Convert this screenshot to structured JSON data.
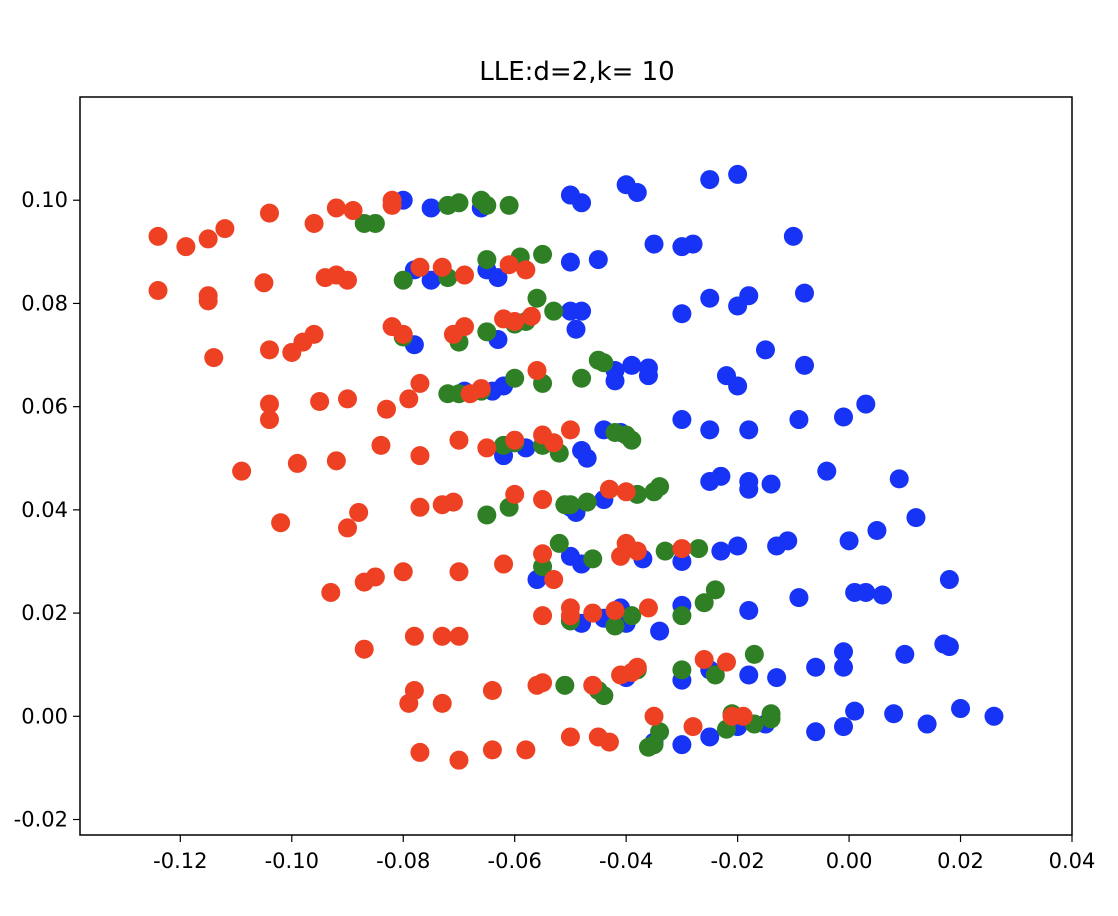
{
  "chart_data": {
    "type": "scatter",
    "title": "LLE:d=2,k= 10",
    "xlabel": "",
    "ylabel": "",
    "xlim": [
      -0.138,
      0.04
    ],
    "ylim": [
      -0.023,
      0.12
    ],
    "grid": false,
    "legend": "none",
    "x_ticks": [
      -0.12,
      -0.1,
      -0.08,
      -0.06,
      -0.04,
      -0.02,
      0.0,
      0.02,
      0.04
    ],
    "x_tick_labels": [
      "-0.12",
      "-0.10",
      "-0.08",
      "-0.06",
      "-0.04",
      "-0.02",
      "0.00",
      "0.02",
      "0.04"
    ],
    "y_ticks": [
      -0.02,
      0.0,
      0.02,
      0.04,
      0.06,
      0.08,
      0.1
    ],
    "y_tick_labels": [
      "-0.02",
      "0.00",
      "0.02",
      "0.04",
      "0.06",
      "0.08",
      "0.10"
    ],
    "series": [
      {
        "color": "#1733f5",
        "points": [
          [
            -0.02,
            0.105
          ],
          [
            -0.025,
            0.104
          ],
          [
            -0.04,
            0.103
          ],
          [
            -0.038,
            0.1015
          ],
          [
            -0.05,
            0.101
          ],
          [
            -0.048,
            0.0995
          ],
          [
            -0.08,
            0.1
          ],
          [
            -0.075,
            0.0985
          ],
          [
            -0.066,
            0.0985
          ],
          [
            -0.01,
            0.093
          ],
          [
            -0.035,
            0.0915
          ],
          [
            -0.028,
            0.0915
          ],
          [
            -0.03,
            0.091
          ],
          [
            -0.05,
            0.088
          ],
          [
            -0.045,
            0.0885
          ],
          [
            -0.078,
            0.0865
          ],
          [
            -0.075,
            0.0845
          ],
          [
            -0.065,
            0.0865
          ],
          [
            -0.063,
            0.085
          ],
          [
            -0.025,
            0.081
          ],
          [
            -0.018,
            0.0815
          ],
          [
            -0.008,
            0.082
          ],
          [
            -0.02,
            0.0795
          ],
          [
            -0.03,
            0.078
          ],
          [
            -0.05,
            0.0785
          ],
          [
            -0.048,
            0.0785
          ],
          [
            -0.049,
            0.075
          ],
          [
            -0.078,
            0.072
          ],
          [
            -0.063,
            0.073
          ],
          [
            -0.015,
            0.071
          ],
          [
            -0.039,
            0.068
          ],
          [
            -0.036,
            0.0675
          ],
          [
            -0.008,
            0.068
          ],
          [
            -0.042,
            0.067
          ],
          [
            -0.036,
            0.066
          ],
          [
            -0.042,
            0.065
          ],
          [
            -0.022,
            0.066
          ],
          [
            -0.02,
            0.064
          ],
          [
            -0.062,
            0.064
          ],
          [
            -0.064,
            0.063
          ],
          [
            -0.069,
            0.063
          ],
          [
            0.003,
            0.0605
          ],
          [
            -0.009,
            0.0575
          ],
          [
            -0.001,
            0.058
          ],
          [
            -0.03,
            0.0575
          ],
          [
            -0.025,
            0.0555
          ],
          [
            -0.018,
            0.0555
          ],
          [
            -0.044,
            0.0555
          ],
          [
            -0.041,
            0.055
          ],
          [
            -0.06,
            0.053
          ],
          [
            -0.058,
            0.052
          ],
          [
            -0.048,
            0.0515
          ],
          [
            -0.047,
            0.05
          ],
          [
            -0.062,
            0.0505
          ],
          [
            -0.004,
            0.0475
          ],
          [
            -0.023,
            0.0465
          ],
          [
            -0.025,
            0.0455
          ],
          [
            -0.018,
            0.0455
          ],
          [
            -0.018,
            0.044
          ],
          [
            -0.014,
            0.045
          ],
          [
            0.009,
            0.046
          ],
          [
            -0.044,
            0.042
          ],
          [
            -0.05,
            0.0405
          ],
          [
            -0.049,
            0.0395
          ],
          [
            0.012,
            0.0385
          ],
          [
            0.005,
            0.036
          ],
          [
            0.0,
            0.034
          ],
          [
            -0.011,
            0.034
          ],
          [
            -0.013,
            0.033
          ],
          [
            -0.02,
            0.033
          ],
          [
            -0.023,
            0.032
          ],
          [
            -0.05,
            0.031
          ],
          [
            -0.048,
            0.0295
          ],
          [
            -0.037,
            0.0305
          ],
          [
            -0.03,
            0.03
          ],
          [
            -0.056,
            0.0265
          ],
          [
            0.018,
            0.0265
          ],
          [
            0.001,
            0.024
          ],
          [
            0.003,
            0.024
          ],
          [
            0.006,
            0.0235
          ],
          [
            -0.009,
            0.023
          ],
          [
            -0.018,
            0.0205
          ],
          [
            -0.03,
            0.0215
          ],
          [
            -0.041,
            0.021
          ],
          [
            -0.05,
            0.0185
          ],
          [
            -0.044,
            0.019
          ],
          [
            -0.034,
            0.0165
          ],
          [
            -0.048,
            0.018
          ],
          [
            -0.04,
            0.018
          ],
          [
            0.017,
            0.014
          ],
          [
            0.018,
            0.0135
          ],
          [
            -0.001,
            0.0125
          ],
          [
            -0.001,
            0.0095
          ],
          [
            0.01,
            0.012
          ],
          [
            -0.006,
            0.0095
          ],
          [
            -0.018,
            0.008
          ],
          [
            -0.013,
            0.0075
          ],
          [
            -0.025,
            0.009
          ],
          [
            -0.03,
            0.007
          ],
          [
            -0.04,
            0.0075
          ],
          [
            0.026,
            0.0
          ],
          [
            0.02,
            0.0015
          ],
          [
            0.014,
            -0.0015
          ],
          [
            0.008,
            0.0005
          ],
          [
            0.001,
            0.001
          ],
          [
            -0.001,
            -0.002
          ],
          [
            -0.006,
            -0.003
          ],
          [
            -0.015,
            -0.0015
          ],
          [
            -0.02,
            -0.002
          ],
          [
            -0.025,
            -0.004
          ],
          [
            -0.03,
            -0.0055
          ],
          [
            -0.035,
            -0.005
          ]
        ]
      },
      {
        "color": "#2f8025",
        "points": [
          [
            -0.066,
            0.1
          ],
          [
            -0.07,
            0.0995
          ],
          [
            -0.072,
            0.099
          ],
          [
            -0.065,
            0.099
          ],
          [
            -0.061,
            0.099
          ],
          [
            -0.085,
            0.0955
          ],
          [
            -0.087,
            0.0955
          ],
          [
            -0.055,
            0.0895
          ],
          [
            -0.059,
            0.089
          ],
          [
            -0.065,
            0.0885
          ],
          [
            -0.08,
            0.0845
          ],
          [
            -0.072,
            0.085
          ],
          [
            -0.056,
            0.081
          ],
          [
            -0.053,
            0.0785
          ],
          [
            -0.058,
            0.0765
          ],
          [
            -0.06,
            0.076
          ],
          [
            -0.065,
            0.0745
          ],
          [
            -0.08,
            0.0735
          ],
          [
            -0.07,
            0.0725
          ],
          [
            -0.045,
            0.069
          ],
          [
            -0.044,
            0.0685
          ],
          [
            -0.048,
            0.0655
          ],
          [
            -0.055,
            0.0645
          ],
          [
            -0.06,
            0.0655
          ],
          [
            -0.066,
            0.063
          ],
          [
            -0.07,
            0.0625
          ],
          [
            -0.072,
            0.0625
          ],
          [
            -0.04,
            0.0545
          ],
          [
            -0.039,
            0.0535
          ],
          [
            -0.042,
            0.055
          ],
          [
            -0.055,
            0.0525
          ],
          [
            -0.06,
            0.053
          ],
          [
            -0.062,
            0.0525
          ],
          [
            -0.052,
            0.051
          ],
          [
            -0.034,
            0.0445
          ],
          [
            -0.035,
            0.0435
          ],
          [
            -0.038,
            0.043
          ],
          [
            -0.047,
            0.0415
          ],
          [
            -0.05,
            0.041
          ],
          [
            -0.051,
            0.041
          ],
          [
            -0.061,
            0.0405
          ],
          [
            -0.065,
            0.039
          ],
          [
            -0.027,
            0.0325
          ],
          [
            -0.033,
            0.032
          ],
          [
            -0.046,
            0.0305
          ],
          [
            -0.052,
            0.0335
          ],
          [
            -0.055,
            0.029
          ],
          [
            -0.024,
            0.0245
          ],
          [
            -0.026,
            0.022
          ],
          [
            -0.03,
            0.0195
          ],
          [
            -0.039,
            0.0195
          ],
          [
            -0.042,
            0.0175
          ],
          [
            -0.05,
            0.0185
          ],
          [
            -0.017,
            0.012
          ],
          [
            -0.024,
            0.008
          ],
          [
            -0.03,
            0.009
          ],
          [
            -0.038,
            0.009
          ],
          [
            -0.045,
            0.005
          ],
          [
            -0.044,
            0.004
          ],
          [
            -0.051,
            0.006
          ],
          [
            -0.014,
            0.0005
          ],
          [
            -0.014,
            -0.0005
          ],
          [
            -0.017,
            -0.0015
          ],
          [
            -0.021,
            0.0005
          ],
          [
            -0.022,
            -0.0025
          ],
          [
            -0.034,
            -0.003
          ],
          [
            -0.036,
            -0.006
          ],
          [
            -0.035,
            -0.0055
          ]
        ]
      },
      {
        "color": "#ee4123",
        "points": [
          [
            -0.124,
            0.093
          ],
          [
            -0.119,
            0.091
          ],
          [
            -0.115,
            0.0925
          ],
          [
            -0.112,
            0.0945
          ],
          [
            -0.104,
            0.0975
          ],
          [
            -0.096,
            0.0955
          ],
          [
            -0.092,
            0.0985
          ],
          [
            -0.089,
            0.098
          ],
          [
            -0.082,
            0.1
          ],
          [
            -0.082,
            0.099
          ],
          [
            -0.124,
            0.0825
          ],
          [
            -0.115,
            0.0815
          ],
          [
            -0.115,
            0.0805
          ],
          [
            -0.105,
            0.084
          ],
          [
            -0.094,
            0.085
          ],
          [
            -0.092,
            0.0855
          ],
          [
            -0.09,
            0.0845
          ],
          [
            -0.077,
            0.087
          ],
          [
            -0.073,
            0.087
          ],
          [
            -0.069,
            0.0855
          ],
          [
            -0.061,
            0.0875
          ],
          [
            -0.058,
            0.0865
          ],
          [
            -0.114,
            0.0695
          ],
          [
            -0.104,
            0.071
          ],
          [
            -0.1,
            0.0705
          ],
          [
            -0.098,
            0.0725
          ],
          [
            -0.096,
            0.074
          ],
          [
            -0.082,
            0.0755
          ],
          [
            -0.08,
            0.074
          ],
          [
            -0.071,
            0.074
          ],
          [
            -0.069,
            0.0755
          ],
          [
            -0.062,
            0.077
          ],
          [
            -0.06,
            0.0765
          ],
          [
            -0.057,
            0.0775
          ],
          [
            -0.104,
            0.0605
          ],
          [
            -0.104,
            0.0575
          ],
          [
            -0.095,
            0.061
          ],
          [
            -0.09,
            0.0615
          ],
          [
            -0.083,
            0.0595
          ],
          [
            -0.079,
            0.0615
          ],
          [
            -0.077,
            0.0645
          ],
          [
            -0.068,
            0.0625
          ],
          [
            -0.066,
            0.0635
          ],
          [
            -0.056,
            0.067
          ],
          [
            -0.109,
            0.0475
          ],
          [
            -0.099,
            0.049
          ],
          [
            -0.092,
            0.0495
          ],
          [
            -0.084,
            0.0525
          ],
          [
            -0.077,
            0.0505
          ],
          [
            -0.07,
            0.0535
          ],
          [
            -0.065,
            0.052
          ],
          [
            -0.06,
            0.0535
          ],
          [
            -0.055,
            0.0545
          ],
          [
            -0.053,
            0.053
          ],
          [
            -0.05,
            0.0555
          ],
          [
            -0.102,
            0.0375
          ],
          [
            -0.09,
            0.0365
          ],
          [
            -0.088,
            0.0395
          ],
          [
            -0.077,
            0.0405
          ],
          [
            -0.073,
            0.041
          ],
          [
            -0.071,
            0.0415
          ],
          [
            -0.06,
            0.043
          ],
          [
            -0.055,
            0.042
          ],
          [
            -0.043,
            0.044
          ],
          [
            -0.04,
            0.0435
          ],
          [
            -0.093,
            0.024
          ],
          [
            -0.087,
            0.026
          ],
          [
            -0.085,
            0.027
          ],
          [
            -0.08,
            0.028
          ],
          [
            -0.07,
            0.028
          ],
          [
            -0.062,
            0.0295
          ],
          [
            -0.055,
            0.0315
          ],
          [
            -0.053,
            0.0265
          ],
          [
            -0.04,
            0.0335
          ],
          [
            -0.041,
            0.031
          ],
          [
            -0.038,
            0.032
          ],
          [
            -0.03,
            0.0325
          ],
          [
            -0.078,
            0.0155
          ],
          [
            -0.073,
            0.0155
          ],
          [
            -0.07,
            0.0155
          ],
          [
            -0.087,
            0.013
          ],
          [
            -0.055,
            0.0195
          ],
          [
            -0.05,
            0.021
          ],
          [
            -0.05,
            0.0195
          ],
          [
            -0.046,
            0.02
          ],
          [
            -0.042,
            0.0205
          ],
          [
            -0.036,
            0.021
          ],
          [
            -0.078,
            0.005
          ],
          [
            -0.079,
            0.0025
          ],
          [
            -0.073,
            0.0025
          ],
          [
            -0.064,
            0.005
          ],
          [
            -0.055,
            0.0065
          ],
          [
            -0.056,
            0.006
          ],
          [
            -0.046,
            0.006
          ],
          [
            -0.041,
            0.008
          ],
          [
            -0.039,
            0.0085
          ],
          [
            -0.038,
            0.0095
          ],
          [
            -0.026,
            0.011
          ],
          [
            -0.022,
            0.0105
          ],
          [
            -0.035,
            0.0
          ],
          [
            -0.028,
            -0.002
          ],
          [
            -0.021,
            0.0
          ],
          [
            -0.019,
            0.0
          ],
          [
            -0.077,
            -0.007
          ],
          [
            -0.07,
            -0.0085
          ],
          [
            -0.064,
            -0.0065
          ],
          [
            -0.058,
            -0.0065
          ],
          [
            -0.05,
            -0.004
          ],
          [
            -0.045,
            -0.004
          ],
          [
            -0.043,
            -0.005
          ]
        ]
      }
    ]
  }
}
